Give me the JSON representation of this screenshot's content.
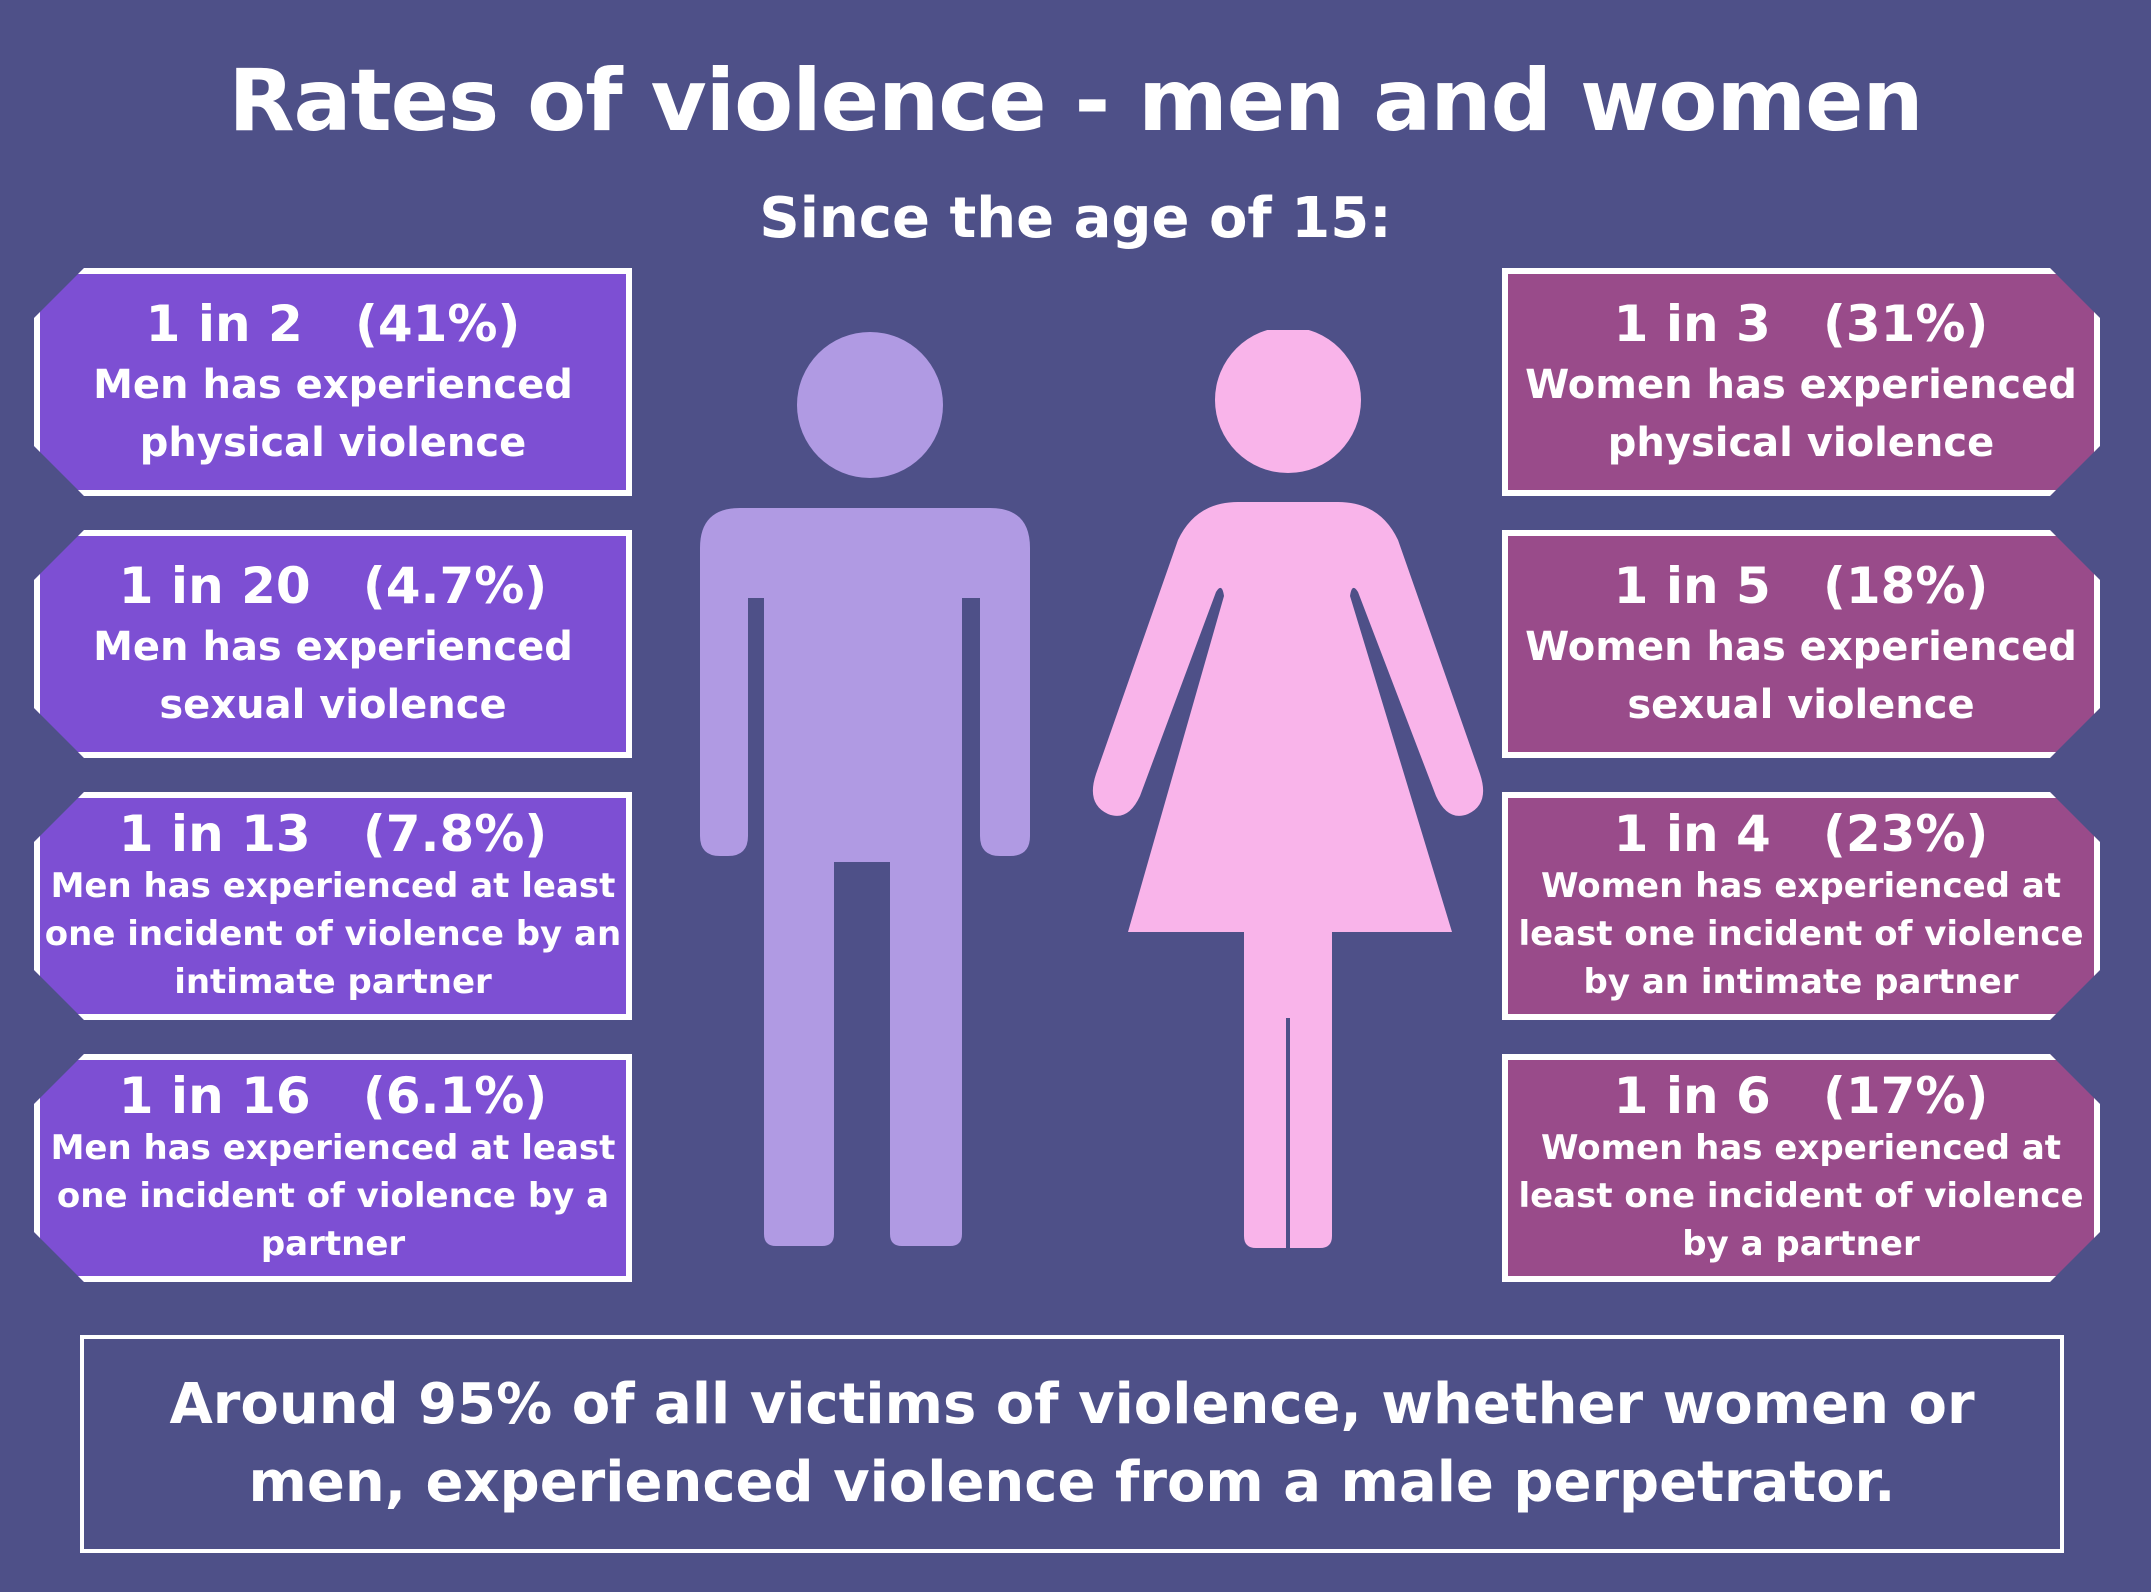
{
  "title": "Rates of violence - men and women",
  "subtitle": "Since the age of 15:",
  "colors": {
    "background": "#4e5088",
    "men_box": "#7d4fd3",
    "women_box": "#994b8a",
    "men_figure": "#b09ae3",
    "women_figure": "#f9b4ea"
  },
  "men": [
    {
      "ratio": "1 in 2   (41%)",
      "desc": "Men has experienced physical violence"
    },
    {
      "ratio": "1 in 20   (4.7%)",
      "desc": "Men has experienced sexual violence"
    },
    {
      "ratio": "1 in 13   (7.8%)",
      "desc": "Men has experienced at least one incident of violence by an intimate partner"
    },
    {
      "ratio": "1 in 16   (6.1%)",
      "desc": "Men has experienced at least one incident of violence by a partner"
    }
  ],
  "women": [
    {
      "ratio": "1 in 3   (31%)",
      "desc": "Women has experienced physical violence"
    },
    {
      "ratio": "1 in 5   (18%)",
      "desc": "Women has experienced sexual violence"
    },
    {
      "ratio": "1 in 4   (23%)",
      "desc": "Women has experienced at least one incident of violence by an intimate partner"
    },
    {
      "ratio": "1 in 6   (17%)",
      "desc": "Women has experienced at least one incident of violence by a partner"
    }
  ],
  "footer": "Around 95% of all victims of violence, whether women or men, experienced violence from a male perpetrator.",
  "icons": [
    "man-figure-icon",
    "woman-figure-icon"
  ]
}
